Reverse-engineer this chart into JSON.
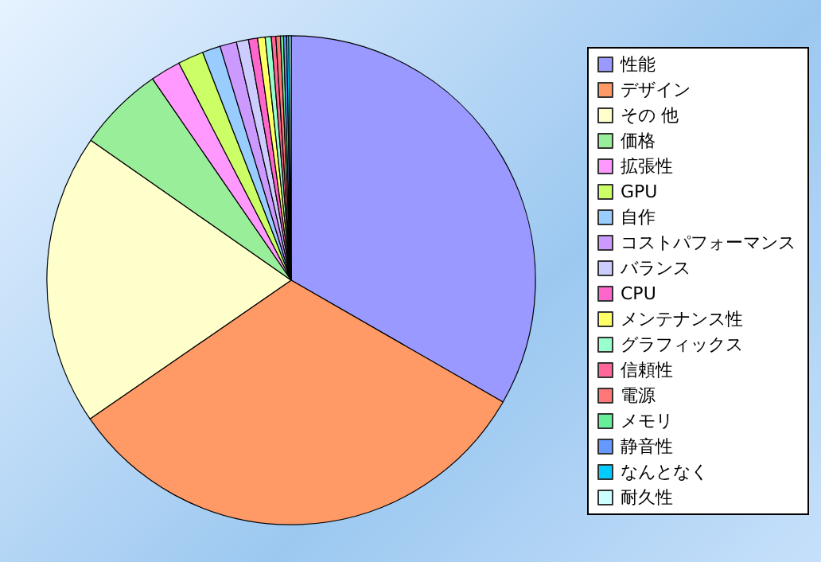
{
  "chart_data": {
    "type": "pie",
    "legend": "right",
    "categories": [
      "性能",
      "デザイン",
      "その 他",
      "価格",
      "拡張性",
      "GPU",
      "自作",
      "コストパフォーマンス",
      "バランス",
      "CPU",
      "メンテナンス性",
      "グラフィックス",
      "信頼性",
      "電源",
      "メモリ",
      "静音性",
      "なんとなく",
      "耐久性"
    ],
    "values": [
      33.3,
      32.1,
      19.3,
      5.7,
      2,
      1.7,
      1.2,
      1.1,
      0.8,
      0.6,
      0.5,
      0.4,
      0.3,
      0.3,
      0.2,
      0.2,
      0.15,
      0.15
    ],
    "colors": [
      "#9999ff",
      "#ff9966",
      "#ffffcc",
      "#99ee99",
      "#ff99ff",
      "#ccff66",
      "#99ccff",
      "#cc99ff",
      "#ccccff",
      "#ff66cc",
      "#ffff66",
      "#99ffcc",
      "#ff6699",
      "#ff7777",
      "#66ee99",
      "#6699ff",
      "#00ccff",
      "#ccffff"
    ]
  }
}
